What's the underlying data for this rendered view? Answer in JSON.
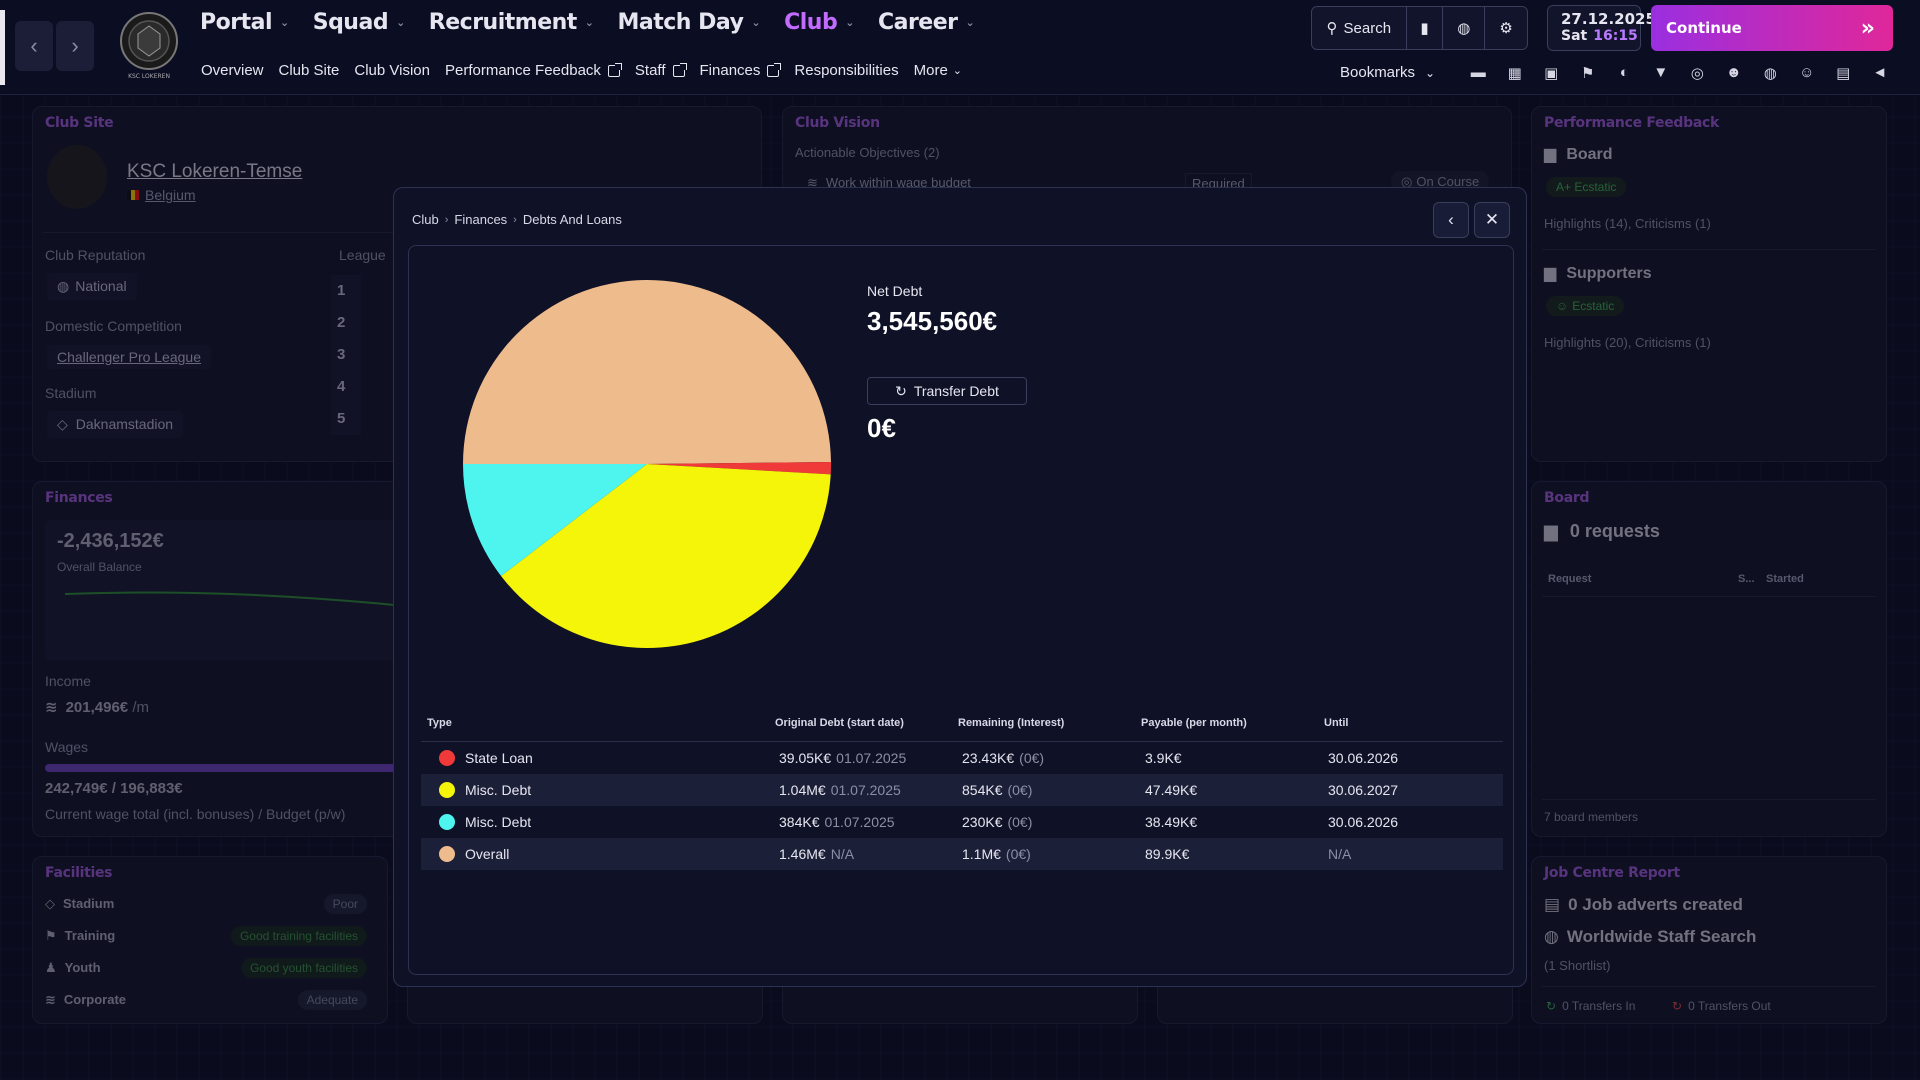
{
  "topbar": {
    "main_nav": [
      {
        "label": "Portal",
        "active": false
      },
      {
        "label": "Squad",
        "active": false
      },
      {
        "label": "Recruitment",
        "active": false
      },
      {
        "label": "Match Day",
        "active": false
      },
      {
        "label": "Club",
        "active": true
      },
      {
        "label": "Career",
        "active": false
      }
    ],
    "sub_nav": [
      {
        "label": "Overview",
        "external": false
      },
      {
        "label": "Club Site",
        "external": false
      },
      {
        "label": "Club Vision",
        "external": false
      },
      {
        "label": "Performance Feedback",
        "external": true
      },
      {
        "label": "Staff",
        "external": true
      },
      {
        "label": "Finances",
        "external": true
      },
      {
        "label": "Responsibilities",
        "external": false
      },
      {
        "label": "More",
        "external": false
      }
    ],
    "search_label": "Search",
    "date": "27.12.2025",
    "day": "Sat",
    "time": "16:15",
    "continue_label": "Continue",
    "bookmarks_label": "Bookmarks",
    "crest_text": "KSC LOKEREN"
  },
  "club_site": {
    "title": "Club Site",
    "club_name": "KSC Lokeren-Temse",
    "country": "Belgium",
    "reputation_label": "Club Reputation",
    "reputation_value": "National",
    "league_label": "League",
    "league_positions": [
      "1",
      "2",
      "3",
      "4",
      "5"
    ],
    "domestic_label": "Domestic Competition",
    "domestic_value": "Challenger Pro League",
    "stadium_label": "Stadium",
    "stadium_value": "Daknamstadion"
  },
  "club_vision": {
    "title": "Club Vision",
    "objectives_label": "Actionable Objectives",
    "objectives_count": "(2)",
    "objective_1": "Work within wage budget",
    "objective_1_req": "Required",
    "objective_1_status": "On Course"
  },
  "performance": {
    "title": "Performance Feedback",
    "board_label": "Board",
    "board_badge": "A+ Ecstatic",
    "board_summary": "Highlights (14),  Criticisms (1)",
    "supporters_label": "Supporters",
    "supporters_badge": "Ecstatic",
    "supporters_summary": "Highlights (20),  Criticisms (1)"
  },
  "finances": {
    "title": "Finances",
    "balance": "-2,436,152€",
    "balance_label": "Overall Balance",
    "income_label": "Income",
    "income_value": "201,496€",
    "income_unit": "/m",
    "wages_label": "Wages",
    "wages_value": "242,749€ / 196,883€",
    "wages_note": "Current wage total (incl. bonuses) / Budget  (p/w)"
  },
  "facilities": {
    "title": "Facilities",
    "items": [
      {
        "label": "Stadium",
        "value": "Poor"
      },
      {
        "label": "Training",
        "value": "Good training facilities"
      },
      {
        "label": "Youth",
        "value": "Good youth facilities"
      },
      {
        "label": "Corporate",
        "value": "Adequate"
      }
    ]
  },
  "board": {
    "title": "Board",
    "requests": "0 requests",
    "col_request": "Request",
    "col_s": "S...",
    "col_started": "Started",
    "members": "7 board members"
  },
  "job_centre": {
    "title": "Job Centre Report",
    "adverts": "0 Job adverts created",
    "worldwide": "Worldwide Staff Search",
    "shortlist": "(1 Shortlist)",
    "transfers_in": "0  Transfers In",
    "transfers_out": "0  Transfers Out"
  },
  "modal": {
    "breadcrumb": [
      "Club",
      "Finances",
      "Debts And Loans"
    ],
    "net_debt_label": "Net Debt",
    "net_debt_value": "3,545,560€",
    "transfer_debt_label": "Transfer Debt",
    "transfer_debt_value": "0€",
    "columns": {
      "type": "Type",
      "original": "Original Debt (start date)",
      "remaining": "Remaining (Interest)",
      "payable": "Payable (per month)",
      "until": "Until"
    },
    "rows": [
      {
        "type": "State Loan",
        "color": "#f03a3a",
        "original": "39.05K€",
        "start": "01.07.2025",
        "remaining": "23.43K€",
        "interest": "(0€)",
        "payable": "3.9K€",
        "until": "30.06.2026"
      },
      {
        "type": "Misc. Debt",
        "color": "#f5f50a",
        "original": "1.04M€",
        "start": "01.07.2025",
        "remaining": "854K€",
        "interest": "(0€)",
        "payable": "47.49K€",
        "until": "30.06.2027"
      },
      {
        "type": "Misc. Debt",
        "color": "#4ef5ee",
        "original": "384K€",
        "start": "01.07.2025",
        "remaining": "230K€",
        "interest": "(0€)",
        "payable": "38.49K€",
        "until": "30.06.2026"
      },
      {
        "type": "Overall",
        "color": "#eebb8c",
        "original": "1.46M€",
        "start": "N/A",
        "remaining": "1.1M€",
        "interest": "(0€)",
        "payable": "89.9K€",
        "until": "N/A"
      }
    ]
  },
  "chart_data": {
    "type": "pie",
    "categories": [
      "Overall",
      "State Loan",
      "Misc. Debt",
      "Misc. Debt"
    ],
    "values": [
      1.1,
      0.02343,
      0.854,
      0.23
    ],
    "colors": [
      "#eebb8c",
      "#f03a3a",
      "#f5f50a",
      "#4ef5ee"
    ],
    "title": ""
  }
}
